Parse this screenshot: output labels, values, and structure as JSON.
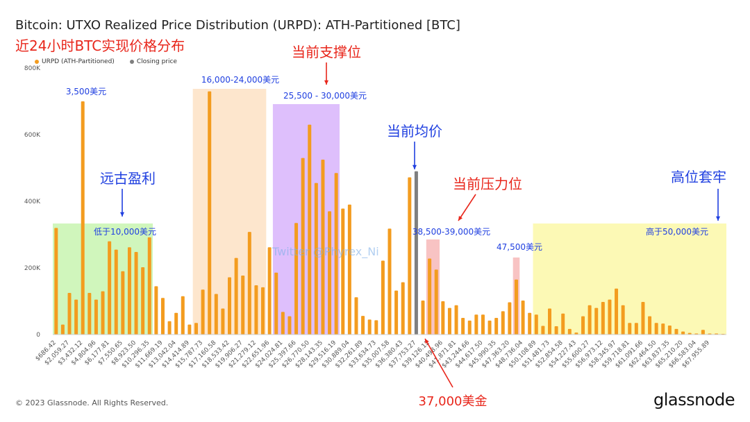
{
  "title": "Bitcoin: UTXO Realized Price Distribution (URPD): ATH-Partitioned [BTC]",
  "subtitle": "近24小时BTC实现价格分布",
  "legend": {
    "urpd": "URPD (ATH-Partitioned)",
    "closing": "Closing price"
  },
  "footer": "© 2023 Glassnode. All Rights Reserved.",
  "brand": "glassnode",
  "watermark": "Twitter @Phyrex_Ni",
  "colors": {
    "bar": "#f39c1f",
    "bar_dark": "#e8831a",
    "closing": "#7f7f7f",
    "green": "#c8f5b0",
    "orange": "#fde2c4",
    "purple": "#d8b4fb",
    "pink": "#f7b8b8",
    "yellow": "#fbf8a8",
    "annot_blue": "#1f3fe0",
    "annot_red": "#e8261b"
  },
  "chart_data": {
    "type": "bar",
    "ylim": [
      0,
      800000
    ],
    "yticks": [
      {
        "v": 0,
        "label": "0"
      },
      {
        "v": 200000,
        "label": "200K"
      },
      {
        "v": 400000,
        "label": "400K"
      },
      {
        "v": 600000,
        "label": "600K"
      },
      {
        "v": 800000,
        "label": "800K"
      }
    ],
    "x_tick_labels": [
      "$686.42",
      "$2,059.27",
      "$3,432.12",
      "$4,804.96",
      "$6,177.81",
      "$7,550.65",
      "$8,923.50",
      "$10,296.35",
      "$11,669.19",
      "$13,042.04",
      "$14,414.89",
      "$15,787.73",
      "$17,160.58",
      "$18,533.42",
      "$19,906.27",
      "$21,279.12",
      "$22,651.96",
      "$24,024.81",
      "$25,397.66",
      "$26,770.50",
      "$28,143.35",
      "$29,516.19",
      "$30,889.04",
      "$32,261.89",
      "$33,634.73",
      "$35,007.58",
      "$36,380.43",
      "$37,753.27",
      "$39,126.12",
      "$40,498.96",
      "$41,871.81",
      "$43,244.66",
      "$44,617.50",
      "$45,990.35",
      "$47,363.20",
      "$48,736.04",
      "$50,108.89",
      "$51,481.73",
      "$52,854.58",
      "$54,227.43",
      "$55,600.27",
      "$56,973.12",
      "$58,345.97",
      "$59,718.81",
      "$61,091.66",
      "$62,464.50",
      "$63,837.35",
      "$65,210.20",
      "$66,583.04",
      "$67,955.89"
    ],
    "values": [
      320000,
      30000,
      125000,
      105000,
      700000,
      125000,
      105000,
      130000,
      280000,
      255000,
      190000,
      262000,
      248000,
      202000,
      292000,
      145000,
      110000,
      40000,
      65000,
      115000,
      30000,
      35000,
      135000,
      730000,
      122000,
      78000,
      172000,
      230000,
      177000,
      308000,
      148000,
      142000,
      262000,
      186000,
      68000,
      55000,
      335000,
      530000,
      630000,
      455000,
      525000,
      370000,
      485000,
      378000,
      390000,
      112000,
      56000,
      45000,
      43000,
      222000,
      318000,
      132000,
      157000,
      472000,
      490000,
      102000,
      228000,
      195000,
      100000,
      80000,
      88000,
      50000,
      42000,
      60000,
      60000,
      42000,
      50000,
      70000,
      97000,
      165000,
      102000,
      65000,
      60000,
      26000,
      78000,
      25000,
      63000,
      17000,
      6000,
      55000,
      88000,
      80000,
      98000,
      105000,
      138000,
      88000,
      35000,
      35000,
      98000,
      55000,
      35000,
      33000,
      27000,
      17000,
      9000,
      5000,
      3000,
      14000,
      3000,
      3000,
      2000
    ],
    "closing_index": 54
  },
  "annotations": {
    "support": "当前支撑位",
    "avg": "当前均价",
    "pressure": "当前压力位",
    "ancient": "远古盈利",
    "trapped": "高位套牢",
    "p3500": "3,500美元",
    "r16_24": "16,000-24,000美元",
    "r25_30": "25,500 - 30,000美元",
    "below10k": "低于10,000美元",
    "r38_39": "38,500-39,000美元",
    "p47500": "47,500美元",
    "above50k": "高于50,000美元",
    "p37000": "37,000美金"
  }
}
